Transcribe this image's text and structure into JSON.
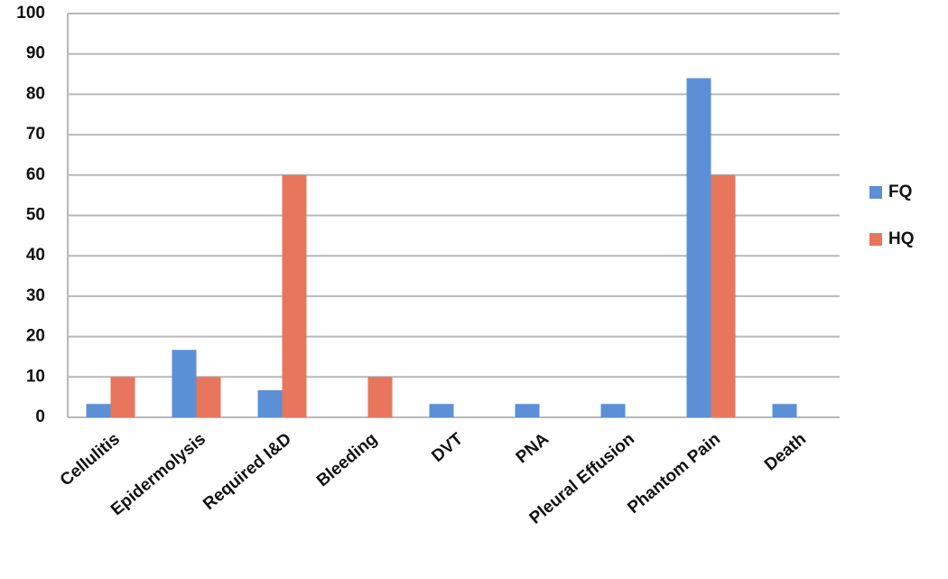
{
  "chart_data": {
    "type": "bar",
    "categories": [
      "Cellulitis",
      "Epidermolysis",
      "Required I&D",
      "Bleeding",
      "DVT",
      "PNA",
      "Pleural Effusion",
      "Phantom Pain",
      "Death"
    ],
    "series": [
      {
        "name": "FQ",
        "color": "#5b8fd6",
        "values": [
          3.3,
          16.7,
          6.7,
          0,
          3.3,
          3.3,
          3.3,
          84,
          3.3
        ]
      },
      {
        "name": "HQ",
        "color": "#e8765c",
        "values": [
          10,
          10,
          60,
          10,
          0,
          0,
          0,
          60,
          0
        ]
      }
    ],
    "ylim": [
      0,
      100
    ],
    "yticks": [
      0,
      10,
      20,
      30,
      40,
      50,
      60,
      70,
      80,
      90,
      100
    ],
    "grid": true,
    "legend": "right"
  }
}
